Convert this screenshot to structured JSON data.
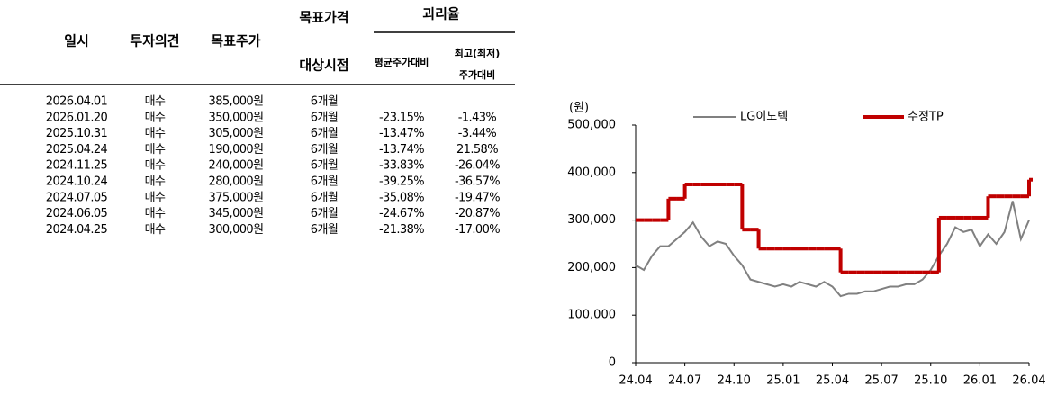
{
  "table": {
    "columns": [
      "일시",
      "투자의견",
      "목표주가"
    ],
    "target_period": [
      "목표가격",
      "대상시점"
    ],
    "gap": "괴리율",
    "avg_col": "평균주가대비",
    "peak_col": [
      "최고(최저)",
      "주가대비"
    ],
    "rows": [
      [
        "2026.04.01",
        "매수",
        "385,000원",
        "6개월",
        null,
        null
      ],
      [
        "2026.01.20",
        "매수",
        "350,000원",
        "6개월",
        "-23.15%",
        "-1.43%"
      ],
      [
        "2025.10.31",
        "매수",
        "305,000원",
        "6개월",
        "-13.47%",
        "-3.44%"
      ],
      [
        "2025.04.24",
        "매수",
        "190,000원",
        "6개월",
        "-13.74%",
        "21.58%"
      ],
      [
        "2024.11.25",
        "매수",
        "240,000원",
        "6개월",
        "-33.83%",
        "-26.04%"
      ],
      [
        "2024.10.24",
        "매수",
        "280,000원",
        "6개월",
        "-39.25%",
        "-36.57%"
      ],
      [
        "2024.07.05",
        "매수",
        "375,000원",
        "6개월",
        "-35.08%",
        "-19.47%"
      ],
      [
        "2024.06.05",
        "매수",
        "345,000원",
        "6개월",
        "-24.67%",
        "-20.87%"
      ],
      [
        "2024.04.25",
        "매수",
        "300,000원",
        "6개월",
        "-21.38%",
        "-17.00%"
      ]
    ]
  },
  "chart_data": {
    "type": "line",
    "y_unit": "(원)",
    "categories": [
      "24.04",
      null,
      null,
      null,
      null,
      null,
      "24.07",
      null,
      null,
      null,
      null,
      null,
      "24.10",
      null,
      null,
      null,
      null,
      null,
      "25.01",
      null,
      null,
      null,
      null,
      null,
      "25.04",
      null,
      null,
      null,
      null,
      null,
      "25.07",
      null,
      null,
      null,
      null,
      null,
      "25.10",
      null,
      null,
      null,
      null,
      null,
      "26.01",
      null,
      null,
      null,
      null,
      null,
      "26.04"
    ],
    "series": [
      {
        "name": "LG이노텍",
        "color": "#808080",
        "step": false,
        "values": [
          205000,
          195000,
          225000,
          245000,
          245000,
          260000,
          275000,
          295000,
          265000,
          245000,
          255000,
          250000,
          225000,
          205000,
          175000,
          170000,
          165000,
          160000,
          165000,
          160000,
          170000,
          165000,
          160000,
          170000,
          160000,
          140000,
          145000,
          145000,
          150000,
          150000,
          155000,
          160000,
          160000,
          165000,
          165000,
          175000,
          195000,
          225000,
          250000,
          285000,
          275000,
          280000,
          245000,
          270000,
          250000,
          275000,
          340000,
          260000,
          300000
        ]
      },
      {
        "name": "수정TP",
        "color": "#c00000",
        "step": true,
        "values": [
          300000,
          300000,
          300000,
          300000,
          345000,
          345000,
          375000,
          375000,
          375000,
          375000,
          375000,
          375000,
          375000,
          280000,
          280000,
          240000,
          240000,
          240000,
          240000,
          240000,
          240000,
          240000,
          240000,
          240000,
          240000,
          190000,
          190000,
          190000,
          190000,
          190000,
          190000,
          190000,
          190000,
          190000,
          190000,
          190000,
          190000,
          305000,
          305000,
          305000,
          305000,
          305000,
          305000,
          350000,
          350000,
          350000,
          350000,
          350000,
          385000
        ]
      }
    ],
    "ylim": [
      0,
      500000
    ],
    "yticks": [
      0,
      {
        "value": 100000,
        "label": "100,000"
      },
      {
        "value": 200000,
        "label": "200,000"
      },
      {
        "value": 300000,
        "label": "300,000"
      },
      {
        "value": 400000,
        "label": "400,000"
      },
      {
        "value": 500000,
        "label": "500,000"
      }
    ]
  }
}
